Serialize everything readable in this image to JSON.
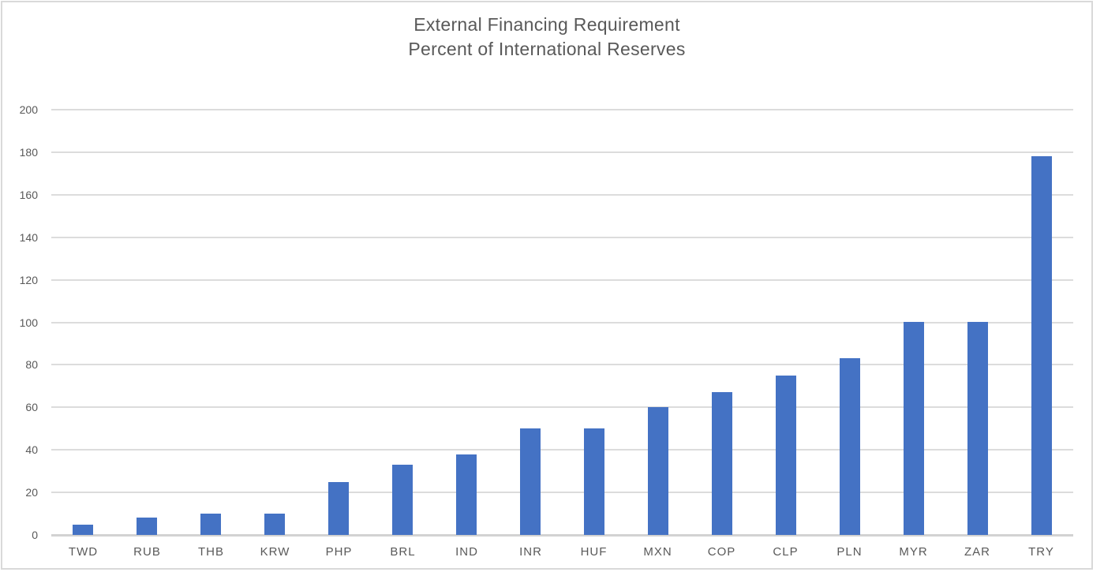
{
  "chart_data": {
    "type": "bar",
    "title": "External Financing Requirement Percent of International Reserves",
    "title_line1": "External Financing Requirement",
    "title_line2": "Percent of International Reserves",
    "categories": [
      "TWD",
      "RUB",
      "THB",
      "KRW",
      "PHP",
      "BRL",
      "IND",
      "INR",
      "HUF",
      "MXN",
      "COP",
      "CLP",
      "PLN",
      "MYR",
      "ZAR",
      "TRY"
    ],
    "values": [
      5,
      8,
      10,
      10,
      25,
      33,
      38,
      50,
      50,
      60,
      67,
      75,
      83,
      100,
      100,
      178
    ],
    "xlabel": "",
    "ylabel": "",
    "ylim": [
      0,
      200
    ],
    "ytick_step": 20,
    "yticks": [
      0,
      20,
      40,
      60,
      80,
      100,
      120,
      140,
      160,
      180,
      200
    ],
    "grid": true,
    "legend": false,
    "colors": {
      "bar": "#4472C4",
      "gridline": "#DCDCDC",
      "axis_line": "#D2D2D2",
      "text": "#595959",
      "frame_border": "#D9D9D9",
      "background": "#FFFFFF"
    }
  }
}
